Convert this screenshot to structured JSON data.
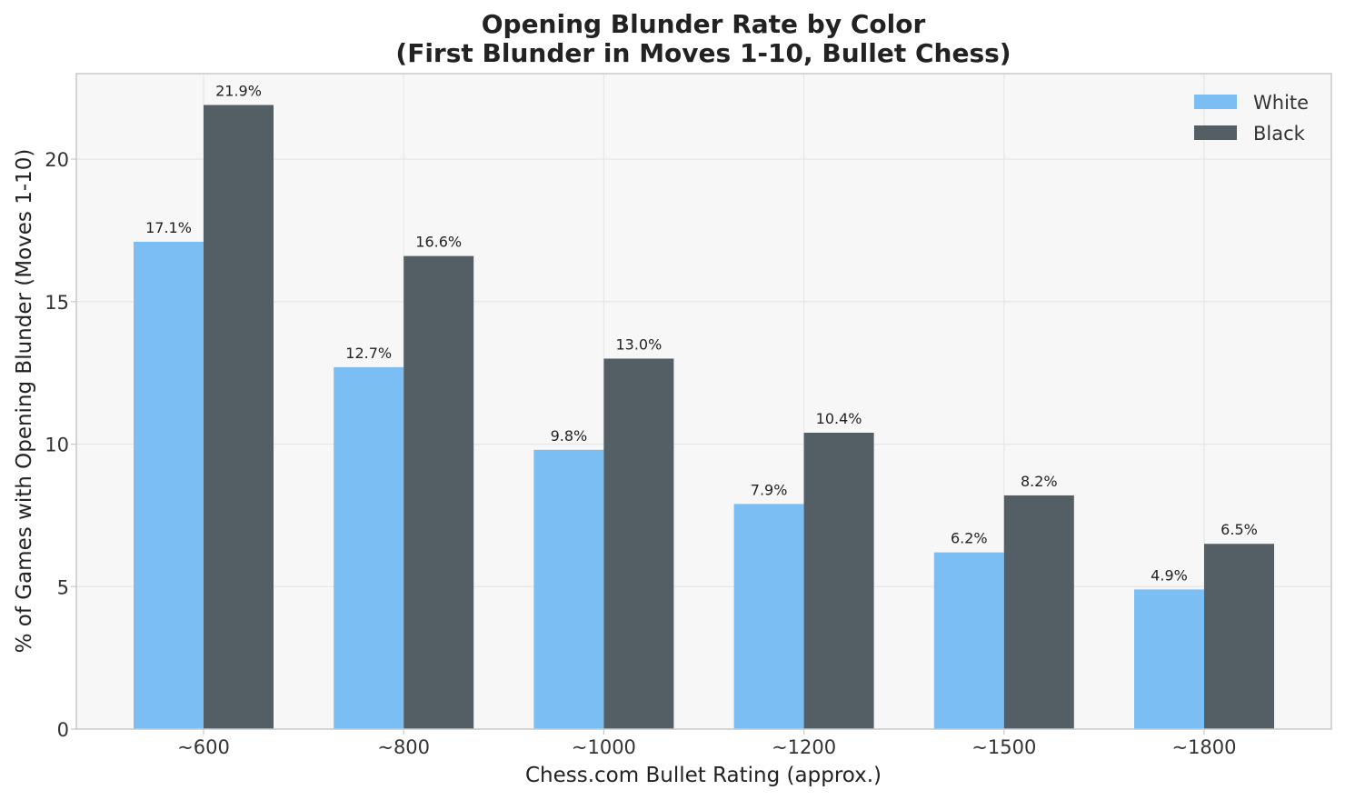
{
  "chart_data": {
    "type": "bar",
    "title_line1": "Opening Blunder Rate by Color",
    "title_line2": "(First Blunder in Moves 1-10, Bullet Chess)",
    "xlabel": "Chess.com Bullet Rating (approx.)",
    "ylabel": "% of Games with Opening Blunder (Moves 1-10)",
    "categories": [
      "~600",
      "~800",
      "~1000",
      "~1200",
      "~1500",
      "~1800"
    ],
    "series": [
      {
        "name": "White",
        "color": "#7BBEF4",
        "values": [
          17.1,
          12.7,
          9.8,
          7.9,
          6.2,
          4.9
        ],
        "labels": [
          "17.1%",
          "12.7%",
          "9.8%",
          "7.9%",
          "6.2%",
          "4.9%"
        ]
      },
      {
        "name": "Black",
        "color": "#535E65",
        "values": [
          21.9,
          16.6,
          13.0,
          10.4,
          8.2,
          6.5
        ],
        "labels": [
          "21.9%",
          "16.6%",
          "13.0%",
          "10.4%",
          "8.2%",
          "6.5%"
        ]
      }
    ],
    "yticks": [
      0,
      5,
      10,
      15,
      20
    ],
    "ylim": [
      0,
      23
    ],
    "grid": true,
    "legend_position": "top-right",
    "plot_background": "#F7F7F7",
    "grid_color": "#E6E6E6"
  }
}
